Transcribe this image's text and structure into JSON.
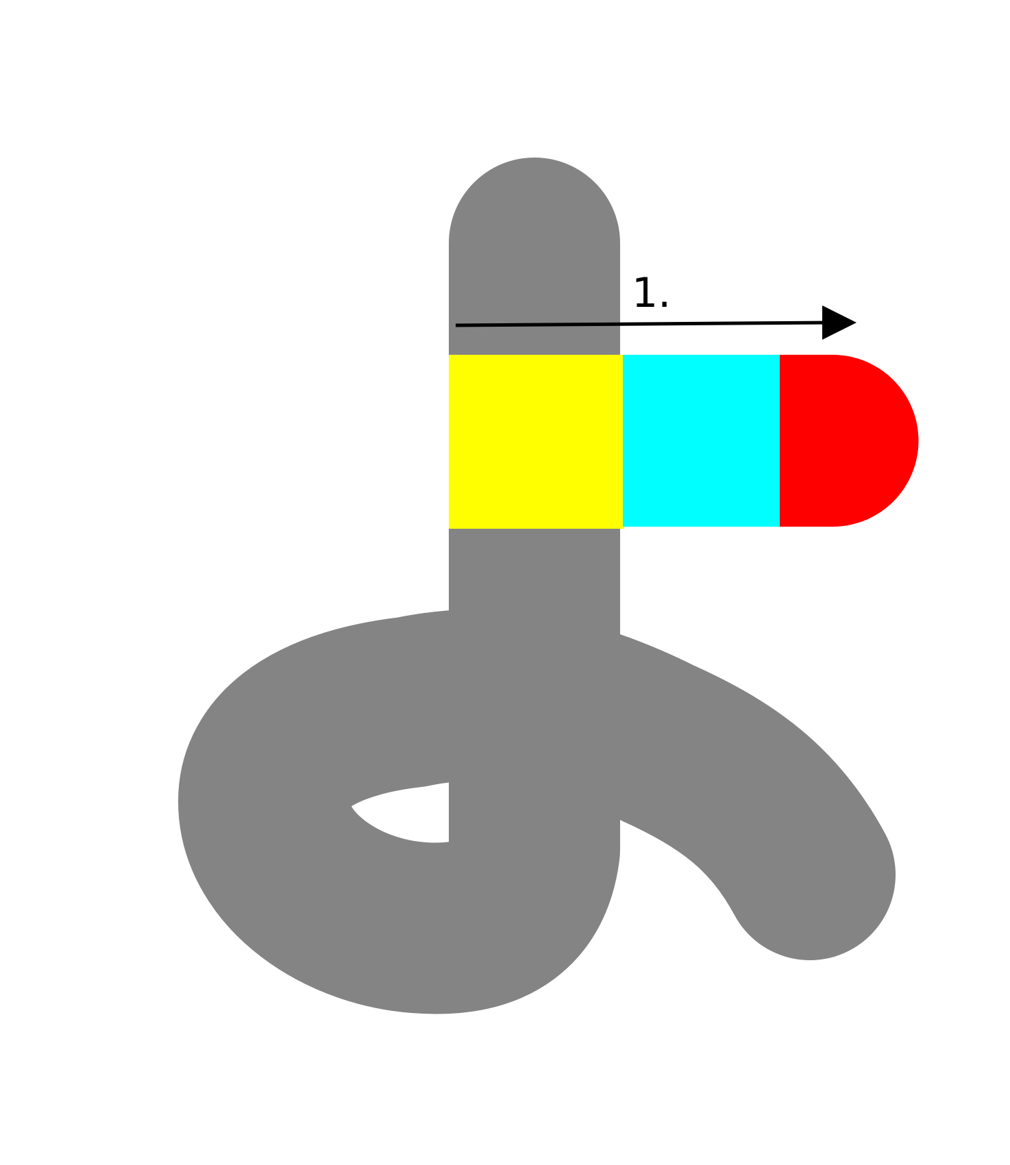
{
  "diagram": {
    "step_label": "1.",
    "colors": {
      "background": "#ffffff",
      "path": "#848484",
      "segment_yellow": "#ffff00",
      "segment_cyan": "#00ffff",
      "segment_red": "#ff0000",
      "arrow": "#000000",
      "label": "#000000"
    },
    "shapes": [
      "vertical-gray-bar-with-rounded-top",
      "gray-loop-curve",
      "yellow-segment",
      "cyan-segment",
      "red-rounded-end-segment",
      "direction-arrow"
    ]
  }
}
